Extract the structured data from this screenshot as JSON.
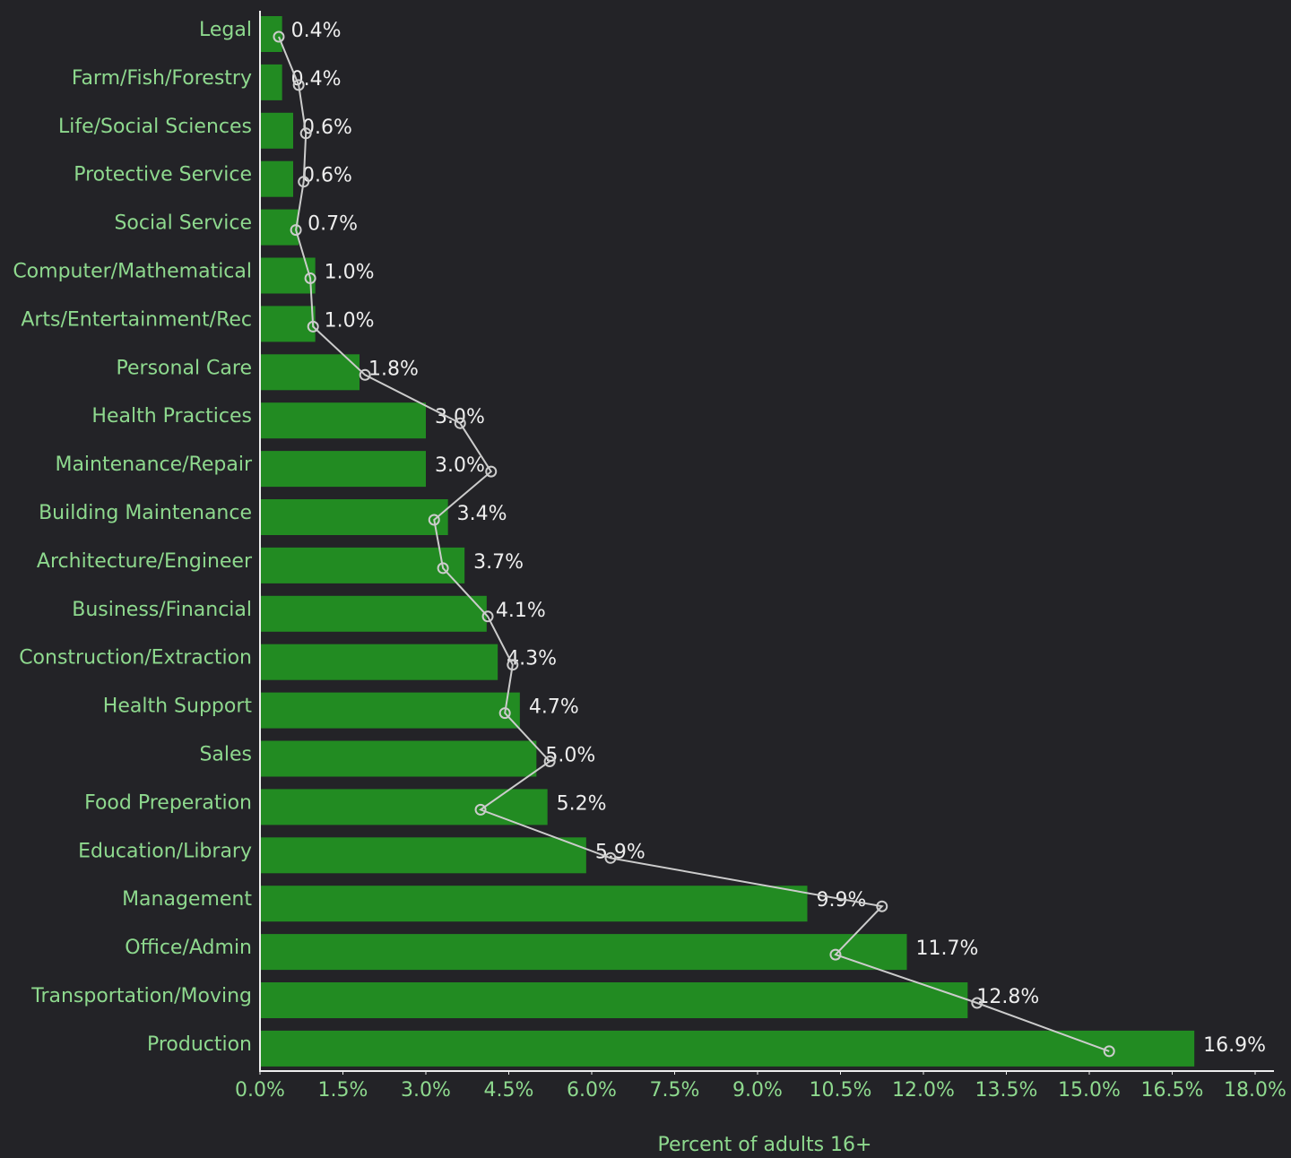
{
  "chart_data": {
    "type": "bar",
    "orientation": "horizontal",
    "x_label": "Percent of adults 16+",
    "categories": [
      "Legal",
      "Farm/Fish/Forestry",
      "Life/Social Sciences",
      "Protective Service",
      "Social Service",
      "Computer/Mathematical",
      "Arts/Entertainment/Rec",
      "Personal Care",
      "Health Practices",
      "Maintenance/Repair",
      "Building Maintenance",
      "Architecture/Engineer",
      "Business/Financial",
      "Construction/Extraction",
      "Health Support",
      "Sales",
      "Food Preperation",
      "Education/Library",
      "Management",
      "Office/Admin",
      "Transportation/Moving",
      "Production"
    ],
    "series": [
      {
        "type": "bar",
        "color": "#228b22",
        "values": [
          0.4,
          0.4,
          0.6,
          0.6,
          0.7,
          1.0,
          1.0,
          1.8,
          3.0,
          3.0,
          3.4,
          3.7,
          4.1,
          4.3,
          4.7,
          5.0,
          5.2,
          5.9,
          9.9,
          11.7,
          12.8,
          16.9
        ],
        "value_labels": [
          "0.4%",
          "0.4%",
          "0.6%",
          "0.6%",
          "0.7%",
          "1.0%",
          "1.0%",
          "1.8%",
          "3.0%",
          "3.0%",
          "3.4%",
          "3.7%",
          "4.1%",
          "4.3%",
          "4.7%",
          "5.0%",
          "5.2%",
          "5.9%",
          "9.9%",
          "11.7%",
          "12.8%",
          "16.9%"
        ]
      },
      {
        "type": "line",
        "color": "#cccccc",
        "values": [
          0.34,
          0.7,
          0.83,
          0.79,
          0.65,
          0.91,
          0.96,
          1.9,
          3.62,
          4.18,
          3.15,
          3.31,
          4.12,
          4.57,
          4.43,
          5.24,
          3.99,
          6.34,
          11.25,
          10.41,
          12.97,
          15.36
        ]
      }
    ],
    "xlim": [
      0,
      18
    ],
    "xticks": [
      {
        "value": 0,
        "label": "0.0%"
      },
      {
        "value": 1.5,
        "label": "1.5%"
      },
      {
        "value": 3,
        "label": "3.0%"
      },
      {
        "value": 4.5,
        "label": "4.5%"
      },
      {
        "value": 6,
        "label": "6.0%"
      },
      {
        "value": 7.5,
        "label": "7.5%"
      },
      {
        "value": 9,
        "label": "9.0%"
      },
      {
        "value": 10.5,
        "label": "10.5%"
      },
      {
        "value": 12,
        "label": "12.0%"
      },
      {
        "value": 13.5,
        "label": "13.5%"
      },
      {
        "value": 15,
        "label": "15.0%"
      },
      {
        "value": 16.5,
        "label": "16.5%"
      },
      {
        "value": 18,
        "label": "18.0%"
      }
    ]
  }
}
